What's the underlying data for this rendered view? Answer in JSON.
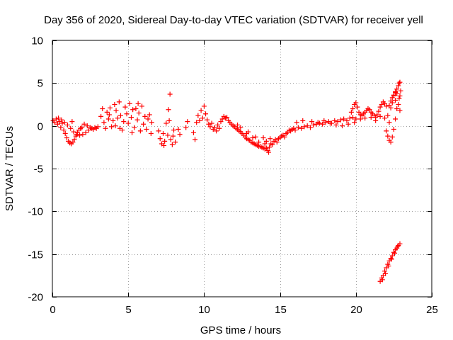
{
  "chart_data": {
    "type": "scatter",
    "title": "Day 356 of 2020, Sidereal Day-to-day VTEC variation (SDTVAR) for receiver yell",
    "xlabel": "GPS time / hours",
    "ylabel": "SDTVAR / TECUs",
    "xlim": [
      0,
      25
    ],
    "ylim": [
      -20,
      10
    ],
    "x_ticks": [
      0,
      5,
      10,
      15,
      20,
      25
    ],
    "y_ticks": [
      -20,
      -15,
      -10,
      -5,
      0,
      5,
      10
    ],
    "x_tick_labels": [
      "0",
      "5",
      "10",
      "15",
      "20",
      "25"
    ],
    "y_tick_labels": [
      "-20",
      "-15",
      "-10",
      "-5",
      "0",
      "5",
      "10"
    ],
    "grid": true,
    "marker": "+",
    "color": "#ff0000",
    "series": [
      {
        "name": "SDTVAR",
        "points": [
          [
            0.05,
            0.6
          ],
          [
            0.15,
            0.4
          ],
          [
            0.25,
            0.8
          ],
          [
            0.35,
            0.2
          ],
          [
            0.45,
            0.5
          ],
          [
            0.55,
            -0.2
          ],
          [
            0.65,
            0.3
          ],
          [
            0.75,
            -0.5
          ],
          [
            0.85,
            -0.9
          ],
          [
            0.95,
            -1.4
          ],
          [
            1.05,
            -1.8
          ],
          [
            1.15,
            -2.0
          ],
          [
            1.25,
            -2.1
          ],
          [
            1.35,
            -1.9
          ],
          [
            1.45,
            -1.6
          ],
          [
            1.55,
            -1.2
          ],
          [
            1.65,
            -0.8
          ],
          [
            1.75,
            -0.5
          ],
          [
            1.85,
            -0.3
          ],
          [
            1.95,
            -0.2
          ],
          [
            0.4,
            0.9
          ],
          [
            0.6,
            0.7
          ],
          [
            0.8,
            0.4
          ],
          [
            1.0,
            0.1
          ],
          [
            1.2,
            -0.3
          ],
          [
            1.4,
            -0.7
          ],
          [
            1.6,
            -1.0
          ],
          [
            1.8,
            -1.1
          ],
          [
            2.0,
            -1.0
          ],
          [
            2.2,
            -0.8
          ],
          [
            2.4,
            -0.5
          ],
          [
            2.6,
            -0.3
          ],
          [
            2.8,
            -0.2
          ],
          [
            3.0,
            -0.1
          ],
          [
            2.1,
            0.2
          ],
          [
            2.3,
            0.0
          ],
          [
            2.5,
            -0.2
          ],
          [
            2.7,
            -0.4
          ],
          [
            2.9,
            -0.3
          ],
          [
            1.3,
            0.5
          ],
          [
            3.2,
            1.1
          ],
          [
            3.3,
            2.0
          ],
          [
            3.4,
            0.4
          ],
          [
            3.5,
            -0.3
          ],
          [
            3.6,
            1.6
          ],
          [
            3.7,
            0.8
          ],
          [
            3.8,
            2.1
          ],
          [
            3.9,
            -0.1
          ],
          [
            4.0,
            0.6
          ],
          [
            4.1,
            2.5
          ],
          [
            4.2,
            1.8
          ],
          [
            4.3,
            0.9
          ],
          [
            4.4,
            2.8
          ],
          [
            4.5,
            1.2
          ],
          [
            4.6,
            -0.5
          ],
          [
            4.7,
            0.5
          ],
          [
            4.8,
            2.2
          ],
          [
            4.9,
            1.4
          ],
          [
            5.0,
            0.3
          ],
          [
            5.1,
            2.6
          ],
          [
            5.2,
            1.0
          ],
          [
            5.3,
            1.9
          ],
          [
            5.4,
            -0.2
          ],
          [
            5.5,
            2.0
          ],
          [
            5.6,
            0.7
          ],
          [
            5.7,
            1.5
          ],
          [
            5.8,
            -0.6
          ],
          [
            5.9,
            2.3
          ],
          [
            6.0,
            0.2
          ],
          [
            6.1,
            1.1
          ],
          [
            6.2,
            -0.4
          ],
          [
            6.3,
            0.8
          ],
          [
            6.4,
            1.3
          ],
          [
            6.5,
            -0.9
          ],
          [
            6.55,
            0.4
          ],
          [
            4.45,
            -0.3
          ],
          [
            5.25,
            -0.8
          ],
          [
            3.75,
            1.3
          ],
          [
            4.15,
            0.0
          ],
          [
            5.65,
            2.6
          ],
          [
            7.0,
            -0.6
          ],
          [
            7.1,
            -1.5
          ],
          [
            7.2,
            -2.1
          ],
          [
            7.3,
            -0.9
          ],
          [
            7.4,
            -1.8
          ],
          [
            7.5,
            0.3
          ],
          [
            7.6,
            -1.1
          ],
          [
            7.7,
            0.6
          ],
          [
            7.75,
            3.7
          ],
          [
            7.8,
            -1.6
          ],
          [
            7.9,
            -2.2
          ],
          [
            8.0,
            -0.5
          ],
          [
            8.1,
            -1.9
          ],
          [
            7.65,
            1.9
          ],
          [
            7.35,
            -2.3
          ],
          [
            7.95,
            -1.2
          ],
          [
            8.3,
            -0.4
          ],
          [
            8.4,
            -1.0
          ],
          [
            8.8,
            -0.2
          ],
          [
            8.9,
            0.5
          ],
          [
            9.3,
            -0.8
          ],
          [
            9.4,
            -1.6
          ],
          [
            9.5,
            0.4
          ],
          [
            9.6,
            1.2
          ],
          [
            9.7,
            0.6
          ],
          [
            9.8,
            1.8
          ],
          [
            9.9,
            0.9
          ],
          [
            10.0,
            2.3
          ],
          [
            10.1,
            1.4
          ],
          [
            10.2,
            0.7
          ],
          [
            10.3,
            0.2
          ],
          [
            10.4,
            -0.1
          ],
          [
            10.5,
            0.3
          ],
          [
            10.6,
            -0.4
          ],
          [
            10.7,
            -0.2
          ],
          [
            10.8,
            -0.6
          ],
          [
            10.9,
            0.1
          ],
          [
            11.0,
            -0.3
          ],
          [
            11.1,
            0.5
          ],
          [
            11.2,
            0.8
          ],
          [
            11.3,
            1.1
          ],
          [
            11.4,
            0.9
          ],
          [
            11.5,
            1.0
          ],
          [
            11.6,
            0.6
          ],
          [
            11.7,
            0.4
          ],
          [
            11.8,
            0.2
          ],
          [
            11.9,
            0.0
          ],
          [
            12.0,
            -0.1
          ],
          [
            12.1,
            -0.3
          ],
          [
            12.2,
            -0.4
          ],
          [
            12.3,
            -0.6
          ],
          [
            12.4,
            -0.7
          ],
          [
            12.5,
            -0.9
          ],
          [
            12.6,
            -1.1
          ],
          [
            12.7,
            -1.3
          ],
          [
            12.8,
            -1.5
          ],
          [
            12.9,
            -1.6
          ],
          [
            13.0,
            -1.7
          ],
          [
            13.1,
            -1.9
          ],
          [
            13.2,
            -2.0
          ],
          [
            13.3,
            -2.1
          ],
          [
            13.4,
            -2.2
          ],
          [
            13.5,
            -2.3
          ],
          [
            13.6,
            -2.4
          ],
          [
            13.7,
            -2.4
          ],
          [
            13.8,
            -2.5
          ],
          [
            13.9,
            -2.6
          ],
          [
            14.0,
            -2.7
          ],
          [
            14.1,
            -2.6
          ],
          [
            14.2,
            -2.9
          ],
          [
            14.25,
            -3.1
          ],
          [
            14.3,
            -2.5
          ],
          [
            14.35,
            -1.5
          ],
          [
            14.4,
            -2.1
          ],
          [
            14.5,
            -2.2
          ],
          [
            14.6,
            -1.8
          ],
          [
            14.7,
            -1.6
          ],
          [
            14.8,
            -1.9
          ],
          [
            14.9,
            -1.5
          ],
          [
            15.0,
            -1.4
          ],
          [
            12.4,
            -0.2
          ],
          [
            12.8,
            -0.9
          ],
          [
            13.2,
            -1.4
          ],
          [
            13.6,
            -1.9
          ],
          [
            14.0,
            -2.1
          ],
          [
            14.1,
            -1.8
          ],
          [
            13.9,
            -1.4
          ],
          [
            13.4,
            -1.3
          ],
          [
            12.9,
            -0.7
          ],
          [
            12.2,
            0.1
          ],
          [
            15.1,
            -1.2
          ],
          [
            15.2,
            -1.1
          ],
          [
            15.3,
            -1.3
          ],
          [
            15.4,
            -0.9
          ],
          [
            15.5,
            -0.8
          ],
          [
            15.6,
            -0.5
          ],
          [
            15.7,
            -0.6
          ],
          [
            15.8,
            -0.4
          ],
          [
            15.9,
            -0.3
          ],
          [
            16.0,
            -0.5
          ],
          [
            16.2,
            -0.2
          ],
          [
            16.4,
            -0.3
          ],
          [
            16.6,
            -0.1
          ],
          [
            16.8,
            0.0
          ],
          [
            17.0,
            -0.2
          ],
          [
            17.2,
            0.1
          ],
          [
            17.4,
            0.2
          ],
          [
            17.6,
            0.3
          ],
          [
            17.8,
            0.2
          ],
          [
            18.0,
            0.4
          ],
          [
            18.2,
            0.5
          ],
          [
            18.4,
            0.3
          ],
          [
            18.6,
            0.6
          ],
          [
            18.8,
            0.5
          ],
          [
            19.0,
            0.7
          ],
          [
            19.2,
            0.8
          ],
          [
            19.4,
            0.6
          ],
          [
            19.6,
            0.9
          ],
          [
            19.8,
            1.0
          ],
          [
            20.0,
            0.8
          ],
          [
            16.1,
            0.4
          ],
          [
            16.5,
            0.6
          ],
          [
            17.1,
            0.5
          ],
          [
            17.5,
            0.4
          ],
          [
            17.9,
            0.6
          ],
          [
            18.3,
            0.3
          ],
          [
            18.7,
            0.1
          ],
          [
            19.1,
            0.0
          ],
          [
            19.5,
            0.2
          ],
          [
            19.9,
            0.4
          ],
          [
            19.7,
            1.6
          ],
          [
            19.8,
            2.0
          ],
          [
            19.9,
            2.5
          ],
          [
            20.0,
            2.7
          ],
          [
            20.1,
            2.2
          ],
          [
            20.2,
            1.6
          ],
          [
            20.3,
            1.3
          ],
          [
            20.4,
            1.2
          ],
          [
            20.5,
            1.4
          ],
          [
            20.6,
            1.6
          ],
          [
            20.7,
            1.8
          ],
          [
            20.8,
            2.0
          ],
          [
            20.9,
            1.9
          ],
          [
            21.0,
            1.6
          ],
          [
            21.1,
            1.4
          ],
          [
            21.2,
            1.2
          ],
          [
            21.3,
            1.0
          ],
          [
            21.4,
            1.3
          ],
          [
            21.5,
            1.7
          ],
          [
            21.6,
            2.2
          ],
          [
            21.7,
            2.5
          ],
          [
            21.8,
            2.8
          ],
          [
            21.9,
            2.6
          ],
          [
            22.0,
            2.3
          ],
          [
            20.3,
            0.8
          ],
          [
            20.6,
            0.9
          ],
          [
            21.0,
            1.0
          ],
          [
            21.3,
            0.6
          ],
          [
            21.6,
            1.1
          ],
          [
            21.9,
            0.9
          ],
          [
            22.0,
            -0.6
          ],
          [
            22.1,
            -1.2
          ],
          [
            22.2,
            -1.7
          ],
          [
            22.3,
            -1.9
          ],
          [
            22.4,
            -1.3
          ],
          [
            22.5,
            -0.4
          ],
          [
            22.6,
            0.8
          ],
          [
            22.7,
            2.0
          ],
          [
            22.1,
            1.2
          ],
          [
            22.2,
            0.4
          ],
          [
            22.3,
            2.9
          ],
          [
            22.4,
            3.3
          ],
          [
            22.5,
            3.6
          ],
          [
            22.6,
            3.9
          ],
          [
            22.7,
            4.3
          ],
          [
            22.8,
            4.7
          ],
          [
            22.85,
            5.0
          ],
          [
            22.9,
            5.1
          ],
          [
            22.95,
            4.1
          ],
          [
            22.85,
            3.2
          ],
          [
            22.8,
            2.5
          ],
          [
            22.9,
            1.8
          ],
          [
            22.7,
            3.8
          ],
          [
            22.6,
            4.0
          ],
          [
            22.5,
            3.5
          ],
          [
            22.4,
            2.7
          ],
          [
            22.3,
            2.1
          ],
          [
            22.2,
            2.4
          ],
          [
            22.6,
            3.0
          ],
          [
            22.9,
            3.5
          ],
          [
            21.6,
            -18.2
          ],
          [
            21.7,
            -17.8
          ],
          [
            21.8,
            -17.5
          ],
          [
            21.9,
            -17.0
          ],
          [
            22.0,
            -16.6
          ],
          [
            22.1,
            -16.2
          ],
          [
            22.2,
            -15.8
          ],
          [
            22.3,
            -15.5
          ],
          [
            22.4,
            -15.2
          ],
          [
            22.5,
            -14.8
          ],
          [
            22.6,
            -14.5
          ],
          [
            22.7,
            -14.3
          ],
          [
            22.8,
            -14.0
          ],
          [
            22.9,
            -13.8
          ],
          [
            21.75,
            -18.0
          ],
          [
            21.95,
            -17.3
          ],
          [
            22.15,
            -16.4
          ],
          [
            22.35,
            -15.6
          ],
          [
            22.55,
            -14.9
          ],
          [
            22.75,
            -14.1
          ]
        ]
      }
    ]
  }
}
